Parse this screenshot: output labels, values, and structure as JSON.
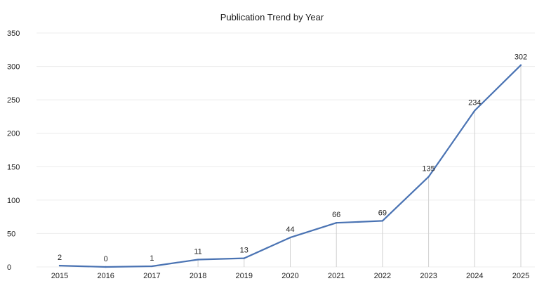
{
  "chart_data": {
    "type": "line",
    "title": "Publication Trend by Year",
    "xlabel": "",
    "ylabel": "",
    "categories": [
      "2015",
      "2016",
      "2017",
      "2018",
      "2019",
      "2020",
      "2021",
      "2022",
      "2023",
      "2024",
      "2025"
    ],
    "series": [
      {
        "values": [
          2,
          0,
          1,
          11,
          13,
          44,
          66,
          69,
          135,
          234,
          302
        ],
        "color": "#4a73b3"
      }
    ],
    "data_labels": [
      "2",
      "0",
      "1",
      "11",
      "13",
      "44",
      "66",
      "69",
      "135",
      "234",
      "302"
    ],
    "ylim": [
      0,
      350
    ],
    "yticks": [
      0,
      50,
      100,
      150,
      200,
      250,
      300,
      350
    ],
    "ytick_labels": [
      "0",
      "50",
      "100",
      "150",
      "200",
      "250",
      "300",
      "350"
    ],
    "grid": "horizontal",
    "drop_lines": true,
    "legend": "none",
    "colors": {
      "line": "#4a73b3",
      "grid": "#ececec",
      "drop_line": "#d0d0d0",
      "text": "#222222"
    }
  }
}
